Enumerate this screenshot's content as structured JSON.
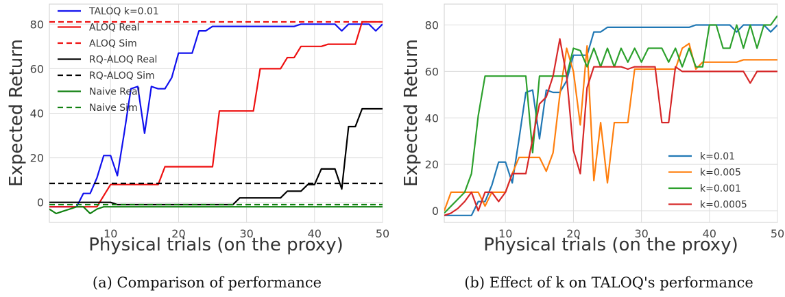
{
  "chart_data": [
    {
      "type": "line",
      "caption": "(a) Comparison of performance",
      "xlabel": "Physical trials (on the proxy)",
      "ylabel": "Expected Return",
      "xlim": [
        1,
        50
      ],
      "ylim": [
        -9,
        89
      ],
      "xticks": [
        10,
        20,
        30,
        40,
        50
      ],
      "yticks": [
        0,
        20,
        40,
        60,
        80
      ],
      "grid": true,
      "legend_position": "top-left",
      "series": [
        {
          "name": "TALOQ k=0.01",
          "color": "#1010ee",
          "dash": false,
          "x": [
            1,
            2,
            3,
            4,
            5,
            6,
            7,
            8,
            9,
            10,
            11,
            12,
            13,
            14,
            15,
            16,
            17,
            18,
            19,
            20,
            21,
            22,
            23,
            24,
            25,
            26,
            27,
            28,
            29,
            30,
            31,
            32,
            33,
            34,
            35,
            36,
            37,
            38,
            39,
            40,
            41,
            42,
            43,
            44,
            45,
            46,
            47,
            48,
            49,
            50
          ],
          "y": [
            -2,
            -2,
            -2,
            -2,
            -2,
            4,
            4,
            11,
            21,
            21,
            12,
            31,
            51,
            52,
            31,
            52,
            51,
            51,
            56,
            67,
            67,
            67,
            77,
            77,
            79,
            79,
            79,
            79,
            79,
            79,
            79,
            79,
            79,
            79,
            79,
            79,
            79,
            80,
            80,
            80,
            80,
            80,
            80,
            77,
            80,
            80,
            80,
            80,
            77,
            80
          ]
        },
        {
          "name": "ALOQ Real",
          "color": "#ee1010",
          "dash": false,
          "x": [
            1,
            2,
            3,
            4,
            5,
            6,
            7,
            8,
            9,
            10,
            11,
            12,
            13,
            14,
            15,
            16,
            17,
            18,
            19,
            20,
            21,
            22,
            23,
            24,
            25,
            26,
            27,
            28,
            29,
            30,
            31,
            32,
            33,
            34,
            35,
            36,
            37,
            38,
            39,
            40,
            41,
            42,
            43,
            44,
            45,
            46,
            47,
            48,
            49,
            50
          ],
          "y": [
            -2,
            -2,
            -2,
            -2,
            -2,
            -2,
            -2,
            -2,
            3,
            8,
            8,
            8,
            8,
            8,
            8,
            8,
            8,
            16,
            16,
            16,
            16,
            16,
            16,
            16,
            16,
            41,
            41,
            41,
            41,
            41,
            41,
            60,
            60,
            60,
            60,
            65,
            65,
            70,
            70,
            70,
            70,
            71,
            71,
            71,
            71,
            71,
            81,
            81,
            81,
            81
          ]
        },
        {
          "name": "ALOQ Sim",
          "color": "#ee1010",
          "dash": true,
          "x": [
            1,
            50
          ],
          "y": [
            81,
            81
          ]
        },
        {
          "name": "RQ-ALOQ Real",
          "color": "#000000",
          "dash": false,
          "x": [
            1,
            2,
            3,
            4,
            5,
            6,
            7,
            8,
            9,
            10,
            11,
            12,
            13,
            14,
            15,
            16,
            17,
            18,
            19,
            20,
            21,
            22,
            23,
            24,
            25,
            26,
            27,
            28,
            29,
            30,
            31,
            32,
            33,
            34,
            35,
            36,
            37,
            38,
            39,
            40,
            41,
            42,
            43,
            44,
            45,
            46,
            47,
            48,
            49,
            50
          ],
          "y": [
            0,
            0,
            0,
            0,
            0,
            0,
            0,
            0,
            0,
            0,
            -1,
            -1,
            -1,
            -1,
            -1,
            -1,
            -1,
            -1,
            -1,
            -1,
            -1,
            -1,
            -1,
            -1,
            -1,
            -1,
            -1,
            -1,
            2,
            2,
            2,
            2,
            2,
            2,
            2,
            5,
            5,
            5,
            8,
            8,
            15,
            15,
            15,
            6,
            34,
            34,
            42,
            42,
            42,
            42
          ]
        },
        {
          "name": "RQ-ALOQ Sim",
          "color": "#000000",
          "dash": true,
          "x": [
            1,
            50
          ],
          "y": [
            8.5,
            8.5
          ]
        },
        {
          "name": "Naive Real",
          "color": "#108010",
          "dash": false,
          "x": [
            1,
            2,
            3,
            4,
            5,
            6,
            7,
            8,
            9,
            10,
            11,
            12,
            13,
            14,
            15,
            16,
            17,
            18,
            19,
            20,
            21,
            22,
            23,
            24,
            25,
            26,
            27,
            28,
            29,
            30,
            31,
            32,
            33,
            34,
            35,
            36,
            37,
            38,
            39,
            40,
            41,
            42,
            43,
            44,
            45,
            46,
            47,
            48,
            49,
            50
          ],
          "y": [
            -3,
            -5,
            -4,
            -3,
            -2,
            -2,
            -5,
            -3,
            -2,
            -2,
            -2,
            -2,
            -2,
            -2,
            -2,
            -2,
            -2,
            -2,
            -2,
            -2,
            -2,
            -2,
            -2,
            -2,
            -2,
            -2,
            -2,
            -2,
            -2,
            -2,
            -2,
            -2,
            -2,
            -2,
            -2,
            -2,
            -2,
            -2,
            -2,
            -2,
            -2,
            -2,
            -2,
            -2,
            -2,
            -2,
            -2,
            -2,
            -2,
            -2
          ]
        },
        {
          "name": "Naive Sim",
          "color": "#108010",
          "dash": true,
          "x": [
            1,
            50
          ],
          "y": [
            -1,
            -1
          ]
        }
      ]
    },
    {
      "type": "line",
      "caption": "(b) Effect of k on TALOQ's performance",
      "xlabel": "Physical trials (on the proxy)",
      "ylabel": "Expected Return",
      "xlim": [
        1,
        50
      ],
      "ylim": [
        -5,
        89
      ],
      "xticks": [
        10,
        20,
        30,
        40,
        50
      ],
      "yticks": [
        0,
        20,
        40,
        60,
        80
      ],
      "grid": true,
      "legend_position": "bottom-right",
      "series": [
        {
          "name": "k=0.01",
          "color": "#1f77b4",
          "dash": false,
          "x": [
            1,
            2,
            3,
            4,
            5,
            6,
            7,
            8,
            9,
            10,
            11,
            12,
            13,
            14,
            15,
            16,
            17,
            18,
            19,
            20,
            21,
            22,
            23,
            24,
            25,
            26,
            27,
            28,
            29,
            30,
            31,
            32,
            33,
            34,
            35,
            36,
            37,
            38,
            39,
            40,
            41,
            42,
            43,
            44,
            45,
            46,
            47,
            48,
            49,
            50
          ],
          "y": [
            -2,
            -2,
            -2,
            -2,
            -2,
            4,
            4,
            11,
            21,
            21,
            12,
            31,
            51,
            52,
            31,
            52,
            51,
            51,
            56,
            67,
            67,
            67,
            77,
            77,
            79,
            79,
            79,
            79,
            79,
            79,
            79,
            79,
            79,
            79,
            79,
            79,
            79,
            80,
            80,
            80,
            80,
            80,
            80,
            77,
            80,
            80,
            80,
            80,
            77,
            80
          ]
        },
        {
          "name": "k=0.005",
          "color": "#ff7f0e",
          "dash": false,
          "x": [
            1,
            2,
            3,
            4,
            5,
            6,
            7,
            8,
            9,
            10,
            11,
            12,
            13,
            14,
            15,
            16,
            17,
            18,
            19,
            20,
            21,
            22,
            23,
            24,
            25,
            26,
            27,
            28,
            29,
            30,
            31,
            32,
            33,
            34,
            35,
            36,
            37,
            38,
            39,
            40,
            41,
            42,
            43,
            44,
            45,
            46,
            47,
            48,
            49,
            50
          ],
          "y": [
            0,
            8,
            8,
            8,
            8,
            8,
            2,
            8,
            8,
            8,
            16,
            23,
            23,
            23,
            23,
            17,
            25,
            50,
            70,
            60,
            37,
            71,
            13,
            38,
            12,
            38,
            38,
            38,
            61,
            61,
            61,
            61,
            61,
            61,
            61,
            70,
            72,
            61,
            64,
            64,
            64,
            64,
            64,
            64,
            65,
            65,
            65,
            65,
            65,
            65
          ]
        },
        {
          "name": "k=0.001",
          "color": "#2ca02c",
          "dash": false,
          "x": [
            1,
            2,
            3,
            4,
            5,
            6,
            7,
            8,
            9,
            10,
            11,
            12,
            13,
            14,
            15,
            16,
            17,
            18,
            19,
            20,
            21,
            22,
            23,
            24,
            25,
            26,
            27,
            28,
            29,
            30,
            31,
            32,
            33,
            34,
            35,
            36,
            37,
            38,
            39,
            40,
            41,
            42,
            43,
            44,
            45,
            46,
            47,
            48,
            49,
            50
          ],
          "y": [
            -1,
            2,
            5,
            8,
            16,
            41,
            58,
            58,
            58,
            58,
            58,
            58,
            58,
            25,
            58,
            58,
            58,
            58,
            58,
            70,
            69,
            62,
            70,
            62,
            70,
            62,
            70,
            64,
            70,
            64,
            70,
            70,
            70,
            64,
            70,
            62,
            70,
            62,
            62,
            80,
            80,
            70,
            70,
            80,
            70,
            80,
            70,
            80,
            80,
            84
          ]
        },
        {
          "name": "k=0.0005",
          "color": "#d62728",
          "dash": false,
          "x": [
            1,
            2,
            3,
            4,
            5,
            6,
            7,
            8,
            9,
            10,
            11,
            12,
            13,
            14,
            15,
            16,
            17,
            18,
            19,
            20,
            21,
            22,
            23,
            24,
            25,
            26,
            27,
            28,
            29,
            30,
            31,
            32,
            33,
            34,
            35,
            36,
            37,
            38,
            39,
            40,
            41,
            42,
            43,
            44,
            45,
            46,
            47,
            48,
            49,
            50
          ],
          "y": [
            -2,
            -1,
            1,
            4,
            8,
            0,
            8,
            8,
            4,
            8,
            16,
            16,
            16,
            31,
            46,
            49,
            58,
            74,
            58,
            26,
            16,
            53,
            62,
            62,
            62,
            62,
            62,
            61,
            62,
            62,
            62,
            62,
            38,
            38,
            62,
            60,
            60,
            60,
            60,
            60,
            60,
            60,
            60,
            60,
            60,
            55,
            60,
            60,
            60,
            60
          ]
        }
      ]
    }
  ]
}
